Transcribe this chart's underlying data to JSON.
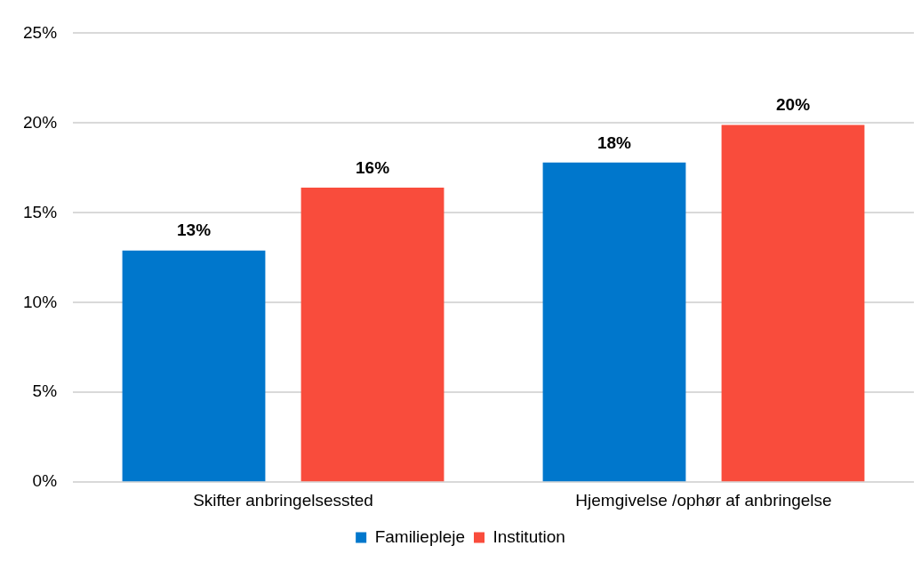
{
  "chart_data": {
    "type": "bar",
    "categories": [
      "Skifter anbringelsessted",
      "Hjemgivelse /ophør af anbringelse"
    ],
    "series": [
      {
        "name": "Familiepleje",
        "color": "#0077cc",
        "values": [
          12.9,
          17.8
        ],
        "value_labels": [
          "13%",
          "18%"
        ]
      },
      {
        "name": "Institution",
        "color": "#f94c3c",
        "values": [
          16.4,
          19.9
        ],
        "value_labels": [
          "16%",
          "20%"
        ]
      }
    ],
    "ylim": [
      0,
      25
    ],
    "yticks": [
      {
        "value": 0,
        "label": "0%"
      },
      {
        "value": 5,
        "label": "5%"
      },
      {
        "value": 10,
        "label": "10%"
      },
      {
        "value": 15,
        "label": "15%"
      },
      {
        "value": 20,
        "label": "20%"
      },
      {
        "value": 25,
        "label": "25%"
      }
    ],
    "grid": "y",
    "legend": "bottom"
  }
}
